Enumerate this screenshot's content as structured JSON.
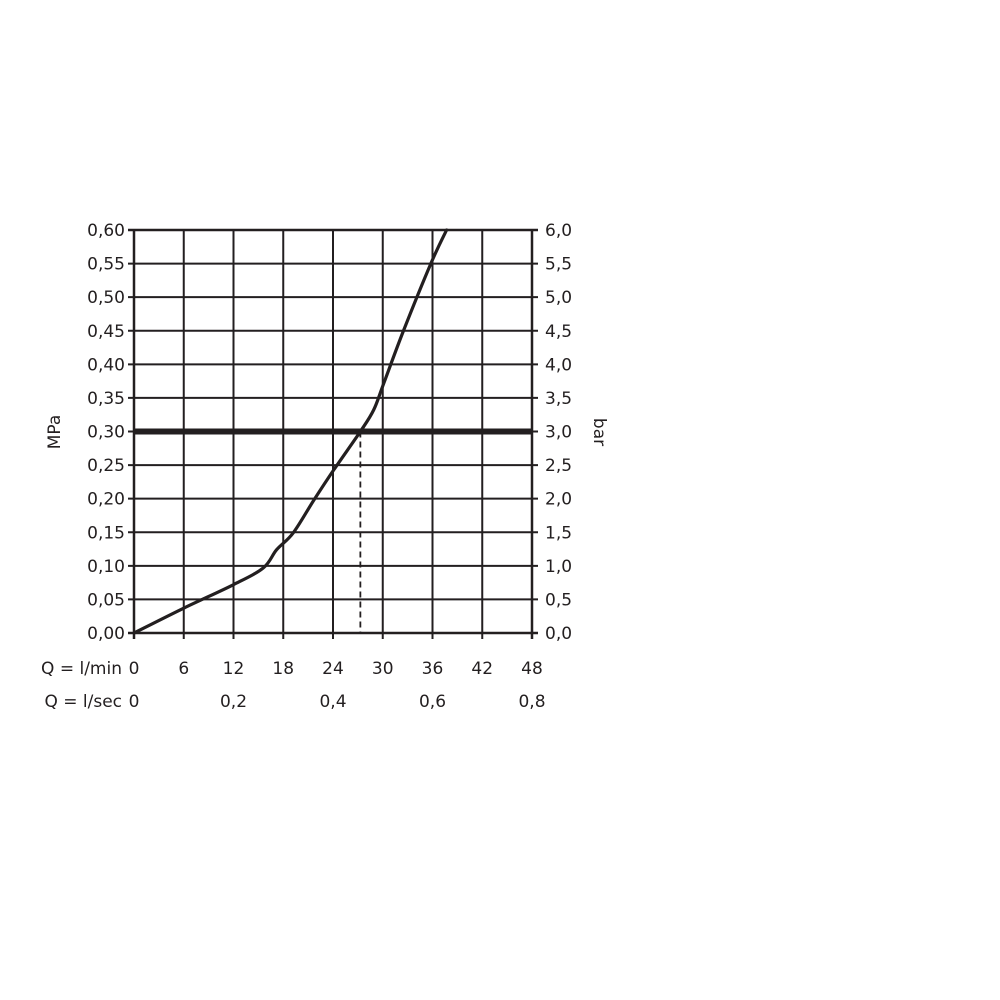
{
  "chart_data": {
    "type": "line",
    "ylabel_left": "MPa",
    "ylabel_right": "bar",
    "xlabel_primary": "Q = l/min",
    "xlabel_secondary": "Q = l/sec",
    "xlim": [
      0,
      48
    ],
    "ylim": [
      0,
      0.6
    ],
    "grid": true,
    "x_ticks": [
      "0",
      "6",
      "12",
      "18",
      "24",
      "30",
      "36",
      "42",
      "48"
    ],
    "x_tick_values": [
      0,
      6,
      12,
      18,
      24,
      30,
      36,
      42,
      48
    ],
    "x2_ticks": [
      "0",
      "0,2",
      "0,4",
      "0,6",
      "0,8"
    ],
    "x2_tick_values": [
      0,
      12,
      24,
      36,
      48
    ],
    "y_ticks_left": [
      "0,00",
      "0,05",
      "0,10",
      "0,15",
      "0,20",
      "0,25",
      "0,30",
      "0,35",
      "0,40",
      "0,45",
      "0,50",
      "0,55",
      "0,60"
    ],
    "y_ticks_right": [
      "0,0",
      "0,5",
      "1,0",
      "1,5",
      "2,0",
      "2,5",
      "3,0",
      "3,5",
      "4,0",
      "4,5",
      "5,0",
      "5,5",
      "6,0"
    ],
    "y_tick_values": [
      0,
      0.05,
      0.1,
      0.15,
      0.2,
      0.25,
      0.3,
      0.35,
      0.4,
      0.45,
      0.5,
      0.55,
      0.6
    ],
    "series": [
      {
        "x": [
          0,
          6,
          12,
          15.6,
          17.2,
          19.2,
          21.7,
          24.1,
          27.3,
          28.9,
          30.1,
          32.5,
          35.8,
          37.7
        ],
        "y": [
          0,
          0.037,
          0.072,
          0.097,
          0.124,
          0.149,
          0.198,
          0.243,
          0.3,
          0.332,
          0.371,
          0.45,
          0.55,
          0.6
        ]
      }
    ],
    "reference_line_y": 0.3,
    "reference_drop_x": 27.3,
    "color": "#231f20"
  }
}
